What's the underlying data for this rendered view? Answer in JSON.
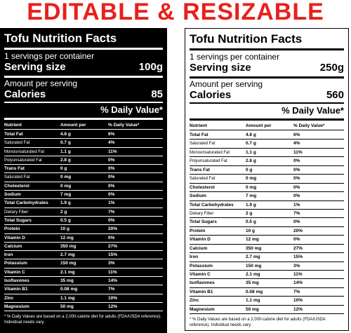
{
  "headline": "EDITABLE & RESIZABLE",
  "labels": [
    {
      "title": "Tofu Nutrition Facts",
      "servings": "1 servings per container",
      "serving_size_label": "Serving size",
      "serving_size_value": "100g",
      "amount_per_serving": "Amount per serving",
      "calories_label": "Calories",
      "calories_value": "85",
      "daily_value_header": "% Daily Value*",
      "col_nutrient": "Nutrient",
      "col_amount": "Amount per",
      "col_dv": "% Daily Value*",
      "rows": [
        {
          "name": "Total Fat",
          "val": "4.8 g",
          "pct": "6%",
          "bold": true
        },
        {
          "name": "Saturated Fat",
          "val": "0.7 g",
          "pct": "4%",
          "bold": false
        },
        {
          "name": "Monounsaturated Fat",
          "val": "1.1 g",
          "pct": "11%",
          "bold": false
        },
        {
          "name": "Polyunsaturated Fat",
          "val": "2.8 g",
          "pct": "0%",
          "bold": false
        },
        {
          "name": "Trans Fat",
          "val": "0 g",
          "pct": "0%",
          "bold": true
        },
        {
          "name": "Saturated Fat",
          "val": "0 mg",
          "pct": "0%",
          "bold": false
        },
        {
          "name": "Cholesterol",
          "val": "0 mg",
          "pct": "0%",
          "bold": true
        },
        {
          "name": "Sodium",
          "val": "7 mg",
          "pct": "0%",
          "bold": true
        },
        {
          "name": "Total Carbohydrates",
          "val": "1.9 g",
          "pct": "1%",
          "bold": true
        },
        {
          "name": "Dietary Fiber",
          "val": "2 g",
          "pct": "7%",
          "bold": false
        },
        {
          "name": "Total Sugars",
          "val": "0.5 g",
          "pct": "0%",
          "bold": true
        },
        {
          "name": "Protein",
          "val": "10 g",
          "pct": "20%",
          "bold": true
        },
        {
          "name": "Vitamin D",
          "val": "12 mg",
          "pct": "0%",
          "bold": true
        },
        {
          "name": "Calcium",
          "val": "350 mg",
          "pct": "27%",
          "bold": true
        },
        {
          "name": "Iron",
          "val": "2.7 mg",
          "pct": "15%",
          "bold": true
        },
        {
          "name": "Potassium",
          "val": "150 mg",
          "pct": "3%",
          "bold": true
        },
        {
          "name": "Vitamin C",
          "val": "2.1 mg",
          "pct": "11%",
          "bold": true
        },
        {
          "name": "Isoflavones",
          "val": "35 mg",
          "pct": "14%",
          "bold": true
        },
        {
          "name": "Vitamin B1",
          "val": "0.08 mg",
          "pct": "7%",
          "bold": true
        },
        {
          "name": "Zinc",
          "val": "1.1 mg",
          "pct": "10%",
          "bold": true
        },
        {
          "name": "Magnesium",
          "val": "50 mg",
          "pct": "12%",
          "bold": true
        }
      ],
      "footnote": "* % Daily Values are based on a 2,000-calorie diet for adults (FDA/USDA reference). Individual needs vary."
    },
    {
      "title": "Tofu Nutrition Facts",
      "servings": "1 servings per container",
      "serving_size_label": "Serving size",
      "serving_size_value": "250g",
      "amount_per_serving": "Amount per serving",
      "calories_label": "Calories",
      "calories_value": "560",
      "daily_value_header": "% Daily Value*",
      "col_nutrient": "Nutrient",
      "col_amount": "Amount per",
      "col_dv": "% Daily Value*",
      "rows": [
        {
          "name": "Total Fat",
          "val": "4.8 g",
          "pct": "6%",
          "bold": true
        },
        {
          "name": "Saturated Fat",
          "val": "0.7 g",
          "pct": "4%",
          "bold": false
        },
        {
          "name": "Monounsaturated Fat",
          "val": "1.1 g",
          "pct": "11%",
          "bold": false
        },
        {
          "name": "Polyunsaturated Fat",
          "val": "2.8 g",
          "pct": "0%",
          "bold": false
        },
        {
          "name": "Trans Fat",
          "val": "0 g",
          "pct": "0%",
          "bold": true
        },
        {
          "name": "Saturated Fat",
          "val": "0 mg",
          "pct": "0%",
          "bold": false
        },
        {
          "name": "Cholesterol",
          "val": "0 mg",
          "pct": "0%",
          "bold": true
        },
        {
          "name": "Sodium",
          "val": "7 mg",
          "pct": "0%",
          "bold": true
        },
        {
          "name": "Total Carbohydrates",
          "val": "1.9 g",
          "pct": "1%",
          "bold": true
        },
        {
          "name": "Dietary Fiber",
          "val": "2 g",
          "pct": "7%",
          "bold": false
        },
        {
          "name": "Total Sugars",
          "val": "0.5 g",
          "pct": "0%",
          "bold": true
        },
        {
          "name": "Protein",
          "val": "10 g",
          "pct": "20%",
          "bold": true
        },
        {
          "name": "Vitamin D",
          "val": "12 mg",
          "pct": "0%",
          "bold": true
        },
        {
          "name": "Calcium",
          "val": "350 mg",
          "pct": "27%",
          "bold": true
        },
        {
          "name": "Iron",
          "val": "2.7 mg",
          "pct": "15%",
          "bold": true
        },
        {
          "name": "Potassium",
          "val": "150 mg",
          "pct": "3%",
          "bold": true
        },
        {
          "name": "Vitamin C",
          "val": "2.1 mg",
          "pct": "11%",
          "bold": true
        },
        {
          "name": "Isoflavones",
          "val": "35 mg",
          "pct": "14%",
          "bold": true
        },
        {
          "name": "Vitamin B1",
          "val": "0.08 mg",
          "pct": "7%",
          "bold": true
        },
        {
          "name": "Zinc",
          "val": "1.1 mg",
          "pct": "10%",
          "bold": true
        },
        {
          "name": "Magnesium",
          "val": "50 mg",
          "pct": "12%",
          "bold": true
        }
      ],
      "footnote": "* % Daily Values are based on a 2,000-calorie diet for adults (FDA/USDA reference). Individual needs vary."
    }
  ],
  "colors": {
    "headline": "#e8201c",
    "dark_bg": "#000000",
    "light_bg": "#ffffff"
  }
}
